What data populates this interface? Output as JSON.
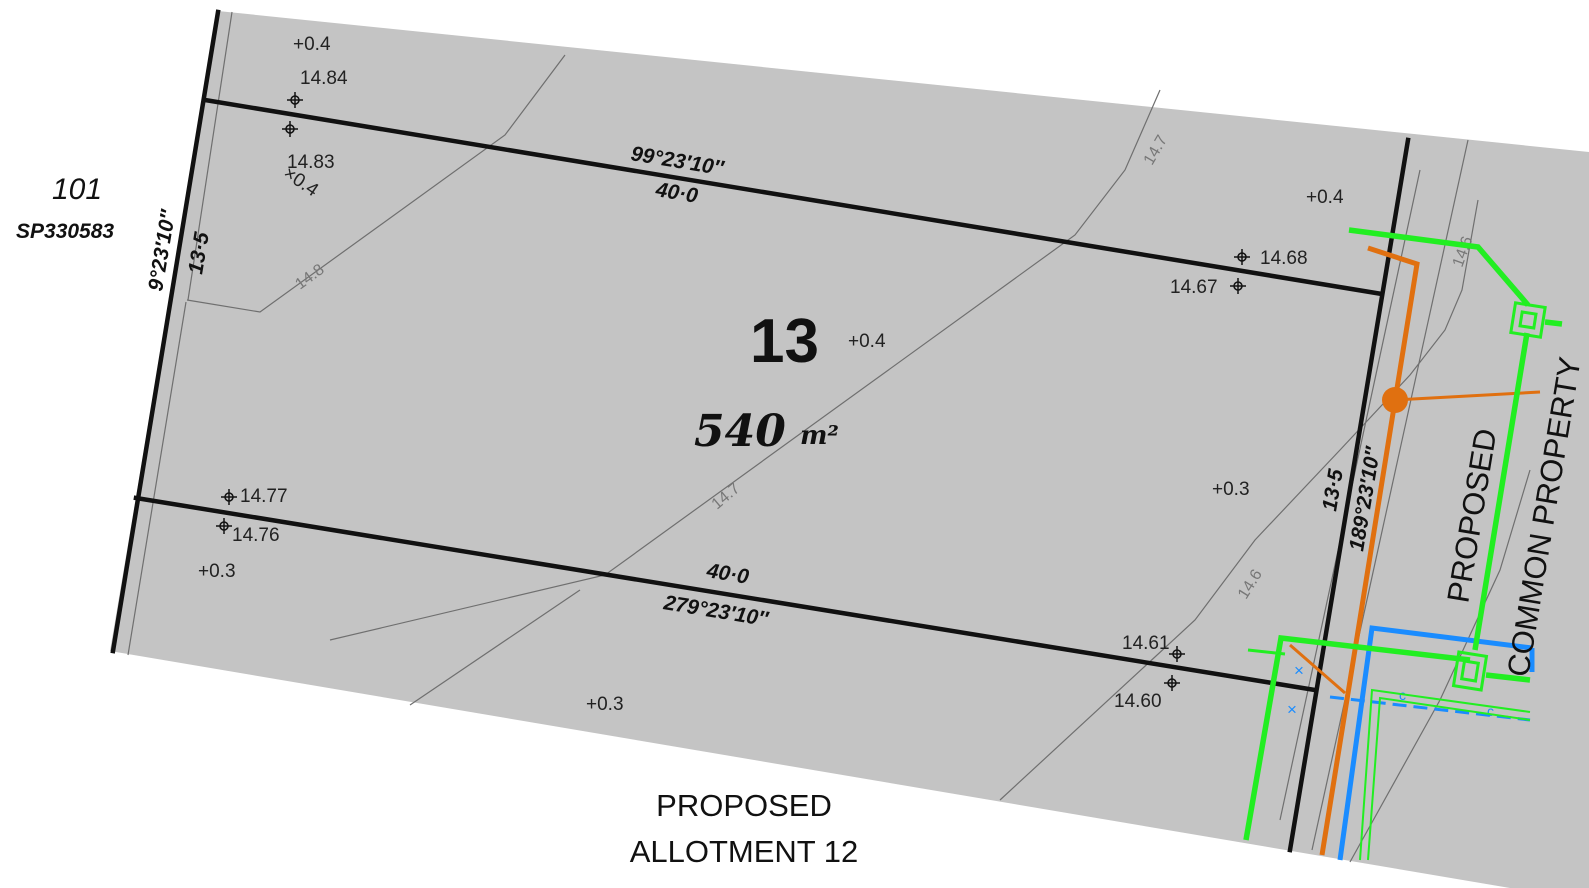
{
  "lot": {
    "number": "13",
    "area_value": "540",
    "area_unit": "m²"
  },
  "neighbours": {
    "lot_101": "101",
    "plan_101": "SP330583",
    "south_line1": "PROPOSED",
    "south_line2": "ALLOTMENT 12",
    "east_line1": "PROPOSED",
    "east_line2": "COMMON PROPERTY"
  },
  "boundaries": {
    "north_bearing": "99°23′10″",
    "north_distance": "40·0",
    "south_distance": "40·0",
    "south_bearing": "279°23′10″",
    "west_bearing": "9°23′10″",
    "west_distance": "13·5",
    "east_distance": "13·5",
    "east_bearing": "189°23′10″"
  },
  "spot_levels": {
    "nw_upper": "14.84",
    "nw_lower": "14.83",
    "ne_upper": "14.68",
    "ne_lower": "14.67",
    "sw_upper": "14.77",
    "sw_lower": "14.76",
    "se_upper": "14.61",
    "se_lower": "14.60"
  },
  "height_notes": {
    "top_left": "+0.4",
    "nw_cross": "×0.4",
    "center": "+0.4",
    "top_right": "+0.4",
    "right_mid": "+0.3",
    "left_low": "+0.3",
    "bottom": "+0.3"
  },
  "contours": {
    "c148": "14.8",
    "c147_upper": "14.7",
    "c147_mid": "14.7",
    "c146_lower": "14.6",
    "c146_right": "14.6"
  },
  "services": {
    "stormwater_color": "#22ee22",
    "sewer_color": "#e07010",
    "water_color": "#1a8cff",
    "pipe_marker_a": "c",
    "pipe_marker_b": "c"
  },
  "colors": {
    "parcel_fill": "#c4c4c4",
    "boundary": "#111111",
    "contour": "#6f6f6f"
  }
}
